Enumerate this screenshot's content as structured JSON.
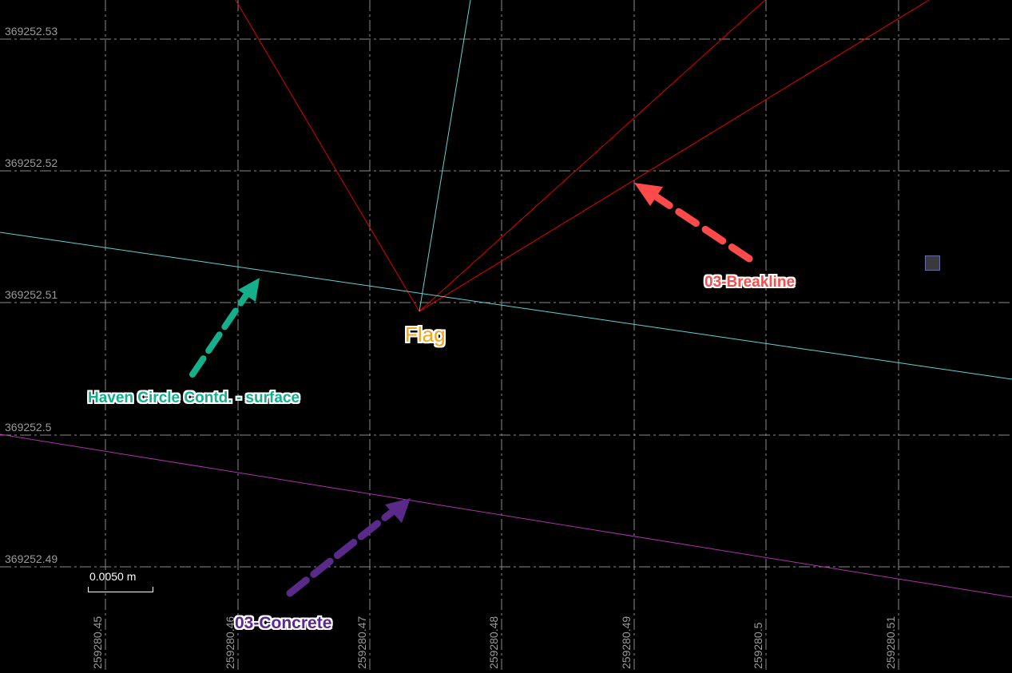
{
  "viewport": {
    "y_labels": [
      "369252.53",
      "369252.52",
      "369252.51",
      "369252.5",
      "369252.49"
    ],
    "x_labels": [
      "259280.45",
      "259280.46",
      "259280.47",
      "259280.48",
      "259280.49",
      "259280.5",
      "259280.51"
    ],
    "scale_bar": "0.0050 m"
  },
  "annotations": {
    "breakline": "03-Breakline",
    "surface": "Haven Circle Contd. - surface",
    "concrete": "03-Concrete",
    "flag": "Flag"
  },
  "colors": {
    "breakline": "#ff4a4a",
    "surface": "#14b08c",
    "concrete": "#5a2a8a",
    "flag": "#f2a51a",
    "red_line": "#e00000",
    "cyan_line": "#5fd3d3",
    "magenta_line": "#b030b0",
    "grid": "#8a8a8a"
  }
}
